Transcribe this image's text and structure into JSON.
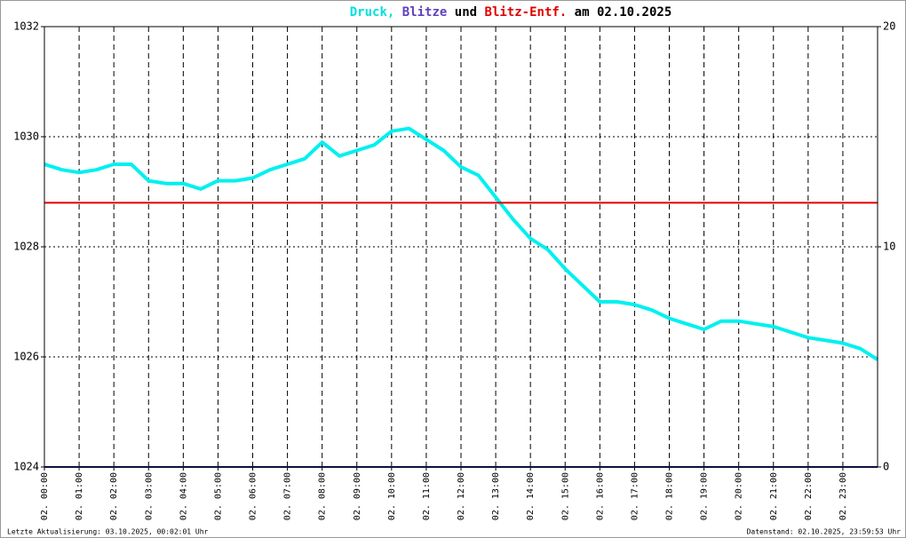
{
  "chart_data": {
    "type": "line",
    "title_parts": [
      {
        "text": "Druck,",
        "color": "#00e0e0"
      },
      {
        "text": "Blitze",
        "color": "#6040c0"
      },
      {
        "text": "und",
        "color": "#000000"
      },
      {
        "text": "Blitz-Entf.",
        "color": "#e00000"
      },
      {
        "text": "am 02.10.2025",
        "color": "#000000"
      }
    ],
    "footer_left": "Letzte Aktualisierung: 03.10.2025, 00:02:01 Uhr",
    "footer_right": "Datenstand: 02.10.2025, 23:59:53 Uhr",
    "x": [
      0,
      0.5,
      1,
      1.5,
      2,
      2.5,
      3,
      3.5,
      4,
      4.5,
      5,
      5.5,
      6,
      6.5,
      7,
      7.5,
      8,
      8.5,
      9,
      9.5,
      10,
      10.5,
      11,
      11.5,
      12,
      12.5,
      13,
      13.5,
      14,
      14.5,
      15,
      15.5,
      16,
      16.5,
      17,
      17.5,
      18,
      18.5,
      19,
      19.5,
      20,
      20.5,
      21,
      21.5,
      22,
      22.5,
      23,
      23.5,
      24
    ],
    "xlim": [
      0,
      24
    ],
    "xticks": [
      {
        "value": 0,
        "label": "02. 00:00"
      },
      {
        "value": 1,
        "label": "02. 01:00"
      },
      {
        "value": 2,
        "label": "02. 02:00"
      },
      {
        "value": 3,
        "label": "02. 03:00"
      },
      {
        "value": 4,
        "label": "02. 04:00"
      },
      {
        "value": 5,
        "label": "02. 05:00"
      },
      {
        "value": 6,
        "label": "02. 06:00"
      },
      {
        "value": 7,
        "label": "02. 07:00"
      },
      {
        "value": 8,
        "label": "02. 08:00"
      },
      {
        "value": 9,
        "label": "02. 09:00"
      },
      {
        "value": 10,
        "label": "02. 10:00"
      },
      {
        "value": 11,
        "label": "02. 11:00"
      },
      {
        "value": 12,
        "label": "02. 12:00"
      },
      {
        "value": 13,
        "label": "02. 13:00"
      },
      {
        "value": 14,
        "label": "02. 14:00"
      },
      {
        "value": 15,
        "label": "02. 15:00"
      },
      {
        "value": 16,
        "label": "02. 16:00"
      },
      {
        "value": 17,
        "label": "02. 17:00"
      },
      {
        "value": 18,
        "label": "02. 18:00"
      },
      {
        "value": 19,
        "label": "02. 19:00"
      },
      {
        "value": 20,
        "label": "02. 20:00"
      },
      {
        "value": 21,
        "label": "02. 21:00"
      },
      {
        "value": 22,
        "label": "02. 22:00"
      },
      {
        "value": 23,
        "label": "02. 23:00"
      }
    ],
    "ylim": [
      1024,
      1032
    ],
    "yticks": [
      1024,
      1026,
      1028,
      1030,
      1032
    ],
    "y2lim": [
      0,
      20
    ],
    "y2ticks": [
      0,
      {
        "value": 10,
        "label": "10",
        "color": "#e00000"
      },
      20
    ],
    "grid": true,
    "series": [
      {
        "color": "#00f0f0",
        "values": [
          1029.5,
          1029.4,
          1029.35,
          1029.4,
          1029.5,
          1029.5,
          1029.2,
          1029.15,
          1029.15,
          1029.05,
          1029.2,
          1029.2,
          1029.25,
          1029.4,
          1029.5,
          1029.6,
          1029.9,
          1029.65,
          1029.75,
          1029.85,
          1030.1,
          1030.15,
          1029.95,
          1029.75,
          1029.45,
          1029.3,
          1028.9,
          1028.5,
          1028.15,
          1027.95,
          1027.6,
          1027.3,
          1027.0,
          1027.0,
          1026.95,
          1026.85,
          1026.7,
          1026.6,
          1026.5,
          1026.65,
          1026.65,
          1026.6,
          1026.55,
          1026.45,
          1026.35,
          1026.3,
          1026.25,
          1026.15,
          1025.95
        ]
      },
      {
        "color": "#202080",
        "axis": "y2",
        "values": [
          0,
          0,
          0,
          0,
          0,
          0,
          0,
          0,
          0,
          0,
          0,
          0,
          0,
          0,
          0,
          0,
          0,
          0,
          0,
          0,
          0,
          0,
          0,
          0,
          0,
          0,
          0,
          0,
          0,
          0,
          0,
          0,
          0,
          0,
          0,
          0,
          0,
          0,
          0,
          0,
          0,
          0,
          0,
          0,
          0,
          0,
          0,
          0,
          0
        ]
      },
      {
        "color": "#e00000",
        "axis": "y2",
        "values": [
          12,
          12,
          12,
          12,
          12,
          12,
          12,
          12,
          12,
          12,
          12,
          12,
          12,
          12,
          12,
          12,
          12,
          12,
          12,
          12,
          12,
          12,
          12,
          12,
          12,
          12,
          12,
          12,
          12,
          12,
          12,
          12,
          12,
          12,
          12,
          12,
          12,
          12,
          12,
          12,
          12,
          12,
          12,
          12,
          12,
          12,
          12,
          12,
          12
        ]
      }
    ]
  }
}
